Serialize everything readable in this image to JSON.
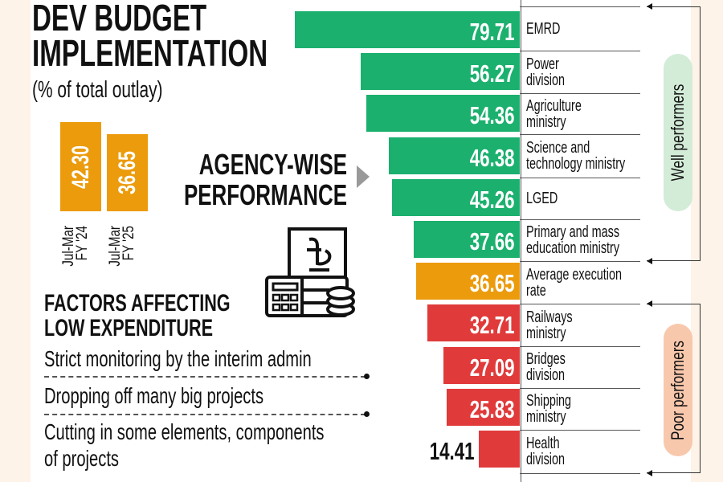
{
  "title_line1": "DEV BUDGET",
  "title_line2": "IMPLEMENTATION",
  "subtitle": "(% of total outlay)",
  "agency_line1": "AGENCY-WISE",
  "agency_line2": "PERFORMANCE",
  "factors_title_line1": "FACTORS AFFECTING",
  "factors_title_line2": "LOW EXPENDITURE",
  "factors": [
    "Strict monitoring by the interim admin",
    "Dropping off many big projects",
    "Cutting in some elements, components",
    "of projects"
  ],
  "group_labels": {
    "well": "Well performers",
    "poor": "Poor performers"
  },
  "colors": {
    "well": "#1bb06e",
    "average": "#eb9b0c",
    "poor": "#e03a3a",
    "well_pill": "#d3ecd8",
    "poor_pill": "#f8c8ad"
  },
  "icons": [
    "taka-document-icon",
    "calculator-icon",
    "coins-icon"
  ],
  "chart_data": [
    {
      "type": "bar",
      "title": "DEV BUDGET IMPLEMENTATION",
      "ylabel": "% of total outlay",
      "categories": [
        [
          "Jul-Mar",
          "FY '24"
        ],
        [
          "Jul-Mar",
          "FY '25"
        ]
      ],
      "values": [
        42.3,
        36.65
      ],
      "labels": [
        "42.30",
        "36.65"
      ]
    },
    {
      "type": "bar",
      "orientation": "horizontal",
      "title": "AGENCY-WISE PERFORMANCE",
      "xlim": [
        0,
        80
      ],
      "categories": [
        [
          "EMRD"
        ],
        [
          "Power",
          "division"
        ],
        [
          "Agriculture",
          "ministry"
        ],
        [
          "Science and",
          "technology ministry"
        ],
        [
          "LGED"
        ],
        [
          "Primary and mass",
          "education ministry"
        ],
        [
          "Average execution",
          "rate"
        ],
        [
          "Railways",
          "ministry"
        ],
        [
          "Bridges",
          "division"
        ],
        [
          "Shipping",
          "ministry"
        ],
        [
          "Health",
          "division"
        ]
      ],
      "values": [
        79.71,
        56.27,
        54.36,
        46.38,
        45.26,
        37.66,
        36.65,
        32.71,
        27.09,
        25.83,
        14.41
      ],
      "labels": [
        "79.71",
        "56.27",
        "54.36",
        "46.38",
        "45.26",
        "37.66",
        "36.65",
        "32.71",
        "27.09",
        "25.83",
        "14.41"
      ],
      "groups": [
        "well",
        "well",
        "well",
        "well",
        "well",
        "well",
        "average",
        "poor",
        "poor",
        "poor",
        "poor"
      ]
    }
  ]
}
